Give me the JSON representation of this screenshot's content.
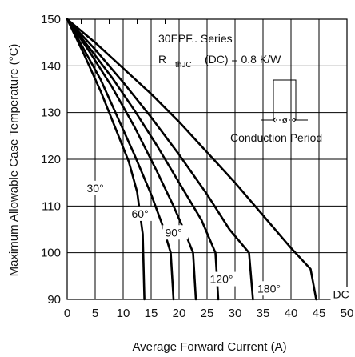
{
  "chart_data": {
    "type": "line",
    "title": "",
    "xlabel": "Average Forward Current (A)",
    "ylabel": "Maximum Allowable Case Temperature (°C)",
    "xlim": [
      0,
      50
    ],
    "ylim": [
      90,
      150
    ],
    "grid": true,
    "xticks": [
      "0",
      "5",
      "10",
      "15",
      "20",
      "25",
      "30",
      "35",
      "40",
      "45",
      "50"
    ],
    "yticks": [
      "90",
      "100",
      "110",
      "120",
      "130",
      "140",
      "150"
    ],
    "annotations": {
      "series_label": "30EPF.. Series",
      "rth_r": "R",
      "rth_sub": "thJC",
      "rth_rest": "(DC) = 0.8 K/W",
      "phi": "ø",
      "conduction": "Conduction Period"
    },
    "series": [
      {
        "name": "30°",
        "label_pos": [
          3.5,
          113
        ],
        "points": [
          [
            0,
            150
          ],
          [
            3,
            142.5
          ],
          [
            6,
            134.5
          ],
          [
            9,
            125.5
          ],
          [
            11,
            119.5
          ],
          [
            12.5,
            113
          ],
          [
            13.5,
            104
          ],
          [
            13.8,
            90
          ]
        ]
      },
      {
        "name": "60°",
        "label_pos": [
          11.5,
          107.5
        ],
        "points": [
          [
            0,
            150
          ],
          [
            3,
            143.5
          ],
          [
            6,
            137
          ],
          [
            9,
            129
          ],
          [
            12,
            121
          ],
          [
            15,
            112.5
          ],
          [
            17,
            106
          ],
          [
            18.5,
            100
          ],
          [
            19,
            90
          ]
        ]
      },
      {
        "name": "90°",
        "label_pos": [
          17.5,
          103.5
        ],
        "points": [
          [
            0,
            150
          ],
          [
            4,
            143
          ],
          [
            8,
            135.5
          ],
          [
            12,
            127
          ],
          [
            16,
            117.5
          ],
          [
            19,
            110
          ],
          [
            21,
            104.5
          ],
          [
            22.5,
            100
          ],
          [
            23,
            90
          ]
        ]
      },
      {
        "name": "120°",
        "label_pos": [
          25.5,
          93.5
        ],
        "points": [
          [
            0,
            150
          ],
          [
            4,
            143.8
          ],
          [
            8,
            137.5
          ],
          [
            12,
            130.5
          ],
          [
            16,
            123
          ],
          [
            20,
            115
          ],
          [
            24,
            107
          ],
          [
            26.5,
            100
          ],
          [
            27,
            90
          ]
        ]
      },
      {
        "name": "180°",
        "label_pos": [
          34,
          91.5
        ],
        "points": [
          [
            0,
            150
          ],
          [
            5,
            143.5
          ],
          [
            10,
            136.5
          ],
          [
            15,
            129
          ],
          [
            20,
            121
          ],
          [
            25,
            112.5
          ],
          [
            29,
            105
          ],
          [
            32.5,
            100
          ],
          [
            33.2,
            90
          ]
        ]
      },
      {
        "name": "DC",
        "label_pos": [
          47.5,
          90.3
        ],
        "points": [
          [
            0,
            150
          ],
          [
            5,
            145
          ],
          [
            10,
            139.5
          ],
          [
            15,
            134
          ],
          [
            20,
            128
          ],
          [
            25,
            121.5
          ],
          [
            30,
            115
          ],
          [
            35,
            108
          ],
          [
            40,
            101
          ],
          [
            43.5,
            96.5
          ],
          [
            44.5,
            90
          ]
        ]
      }
    ]
  }
}
